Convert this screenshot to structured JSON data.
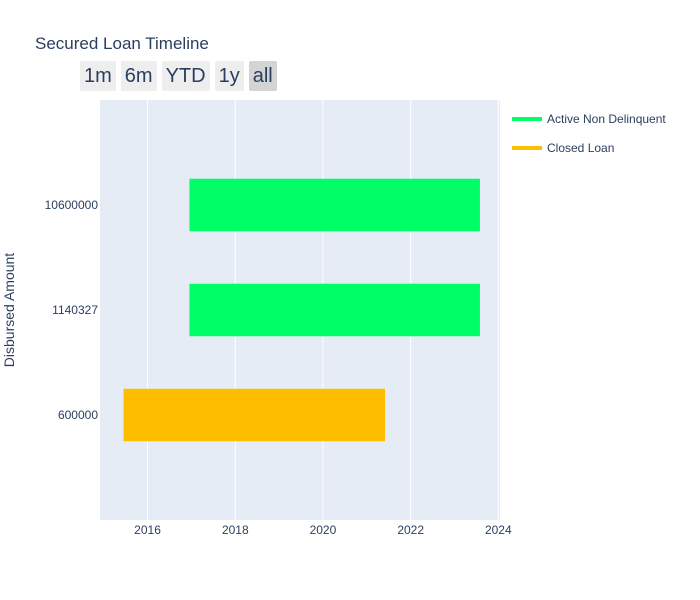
{
  "chart_data": {
    "type": "timeline",
    "title": "Secured Loan Timeline",
    "ylabel": "Disbursed Amount",
    "xlim": [
      "2014-12-01",
      "2024-01-15"
    ],
    "x_ticks": [
      {
        "label": "2016",
        "date": "2016-01-01"
      },
      {
        "label": "2018",
        "date": "2018-01-01"
      },
      {
        "label": "2020",
        "date": "2020-01-01"
      },
      {
        "label": "2022",
        "date": "2022-01-01"
      },
      {
        "label": "2024",
        "date": "2024-01-01"
      }
    ],
    "categories": [
      "600000",
      "1140327",
      "10600000"
    ],
    "tasks": [
      {
        "category": "10600000",
        "start": "2016-12-15",
        "end": "2023-08-01",
        "series": "Active Non Delinquent"
      },
      {
        "category": "1140327",
        "start": "2016-12-15",
        "end": "2023-08-01",
        "series": "Active Non Delinquent"
      },
      {
        "category": "600000",
        "start": "2015-06-15",
        "end": "2021-06-01",
        "series": "Closed Loan"
      }
    ],
    "series": [
      {
        "name": "Active Non Delinquent",
        "color": "#00fe66"
      },
      {
        "name": "Closed Loan",
        "color": "#ffbd00"
      }
    ],
    "grid": true,
    "legend_position": "top-right",
    "background_color": "#e5ecf6",
    "grid_color": "#ffffff"
  },
  "range_selector": {
    "buttons": [
      {
        "label": "1m",
        "active": false
      },
      {
        "label": "6m",
        "active": false
      },
      {
        "label": "YTD",
        "active": false
      },
      {
        "label": "1y",
        "active": false
      },
      {
        "label": "all",
        "active": true
      }
    ]
  }
}
